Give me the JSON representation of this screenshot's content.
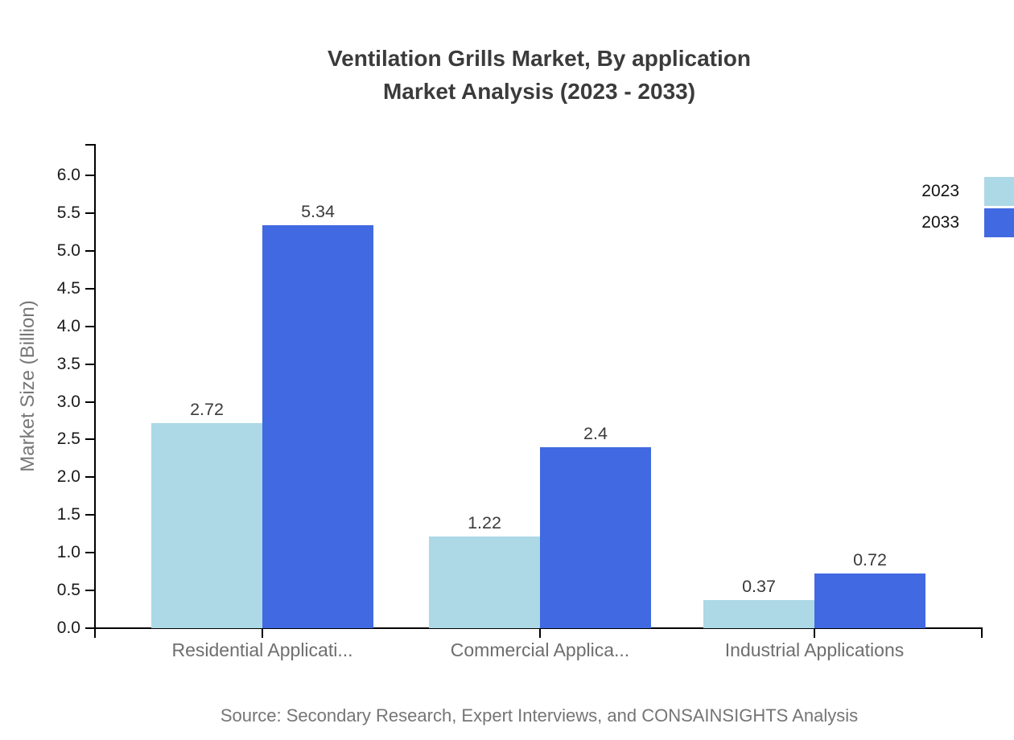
{
  "source_note": "Source: Secondary Research, Expert Interviews, and CONSAINSIGHTS Analysis",
  "chart_data": {
    "type": "bar",
    "title": "Ventilation Grills Market, By application Market Analysis (2023 - 2033)",
    "title_lines": [
      "Ventilation Grills Market, By application",
      "Market Analysis (2023 - 2033)"
    ],
    "categories": [
      "Residential Applicati...",
      "Commercial Applica...",
      "Industrial Applications"
    ],
    "series": [
      {
        "name": "2023",
        "color": "#ADD8E6",
        "values": [
          2.72,
          1.22,
          0.37
        ]
      },
      {
        "name": "2033",
        "color": "#4169E1",
        "values": [
          5.34,
          2.4,
          0.72
        ]
      }
    ],
    "xlabel": "",
    "ylabel": "Market Size (Billion)",
    "ylim": [
      0,
      6.4
    ],
    "yticks": [
      0,
      0.5,
      1,
      1.5,
      2,
      2.5,
      3,
      3.5,
      4,
      4.5,
      5,
      5.5,
      6
    ],
    "grid": false,
    "legend_position": "top-right",
    "colors": {
      "axis": "#000000",
      "tick_label": "#1a1a1a",
      "category_label": "#6e6e6e",
      "value_label": "#3b3b3b",
      "title": "#3b3b3b",
      "muted_text": "#757575"
    }
  }
}
